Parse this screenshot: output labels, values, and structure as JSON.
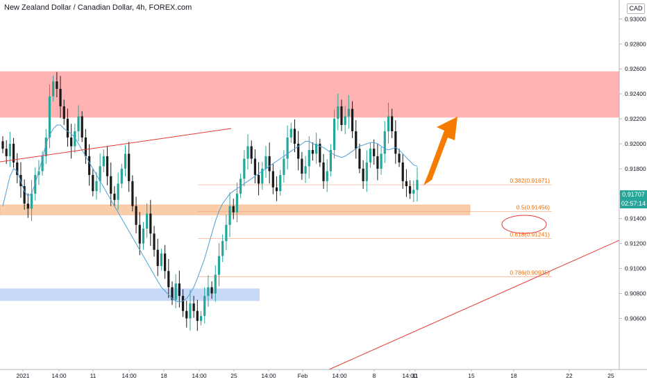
{
  "header": {
    "title": "New Zealand Dollar / Canadian Dollar, 4h, FOREX.com",
    "currency": "CAD"
  },
  "price_badges": {
    "last_price": "0.91707",
    "countdown": "02:57:14"
  },
  "colors": {
    "up_candle": "#26a69a",
    "down_candle": "#1a1a1a",
    "ma_line": "#4a9fd8",
    "resistance_zone": "#ffb3b3",
    "support_zone": "#f9ccaa",
    "demand_zone": "#c8d9f7",
    "trendline": "#e53935",
    "fib_line": "#f5a57a",
    "fib_text": "#ef6c00",
    "arrow": "#f57c00",
    "price_badge": "#26a69a"
  },
  "chart_data": {
    "type": "candlestick",
    "symbol": "NZDCAD",
    "timeframe": "4h",
    "y_axis": {
      "min": 0.9048,
      "max": 0.9318,
      "ticks": [
        "0.93000",
        "0.92800",
        "0.92600",
        "0.92400",
        "0.92200",
        "0.92000",
        "0.91800",
        "0.91600",
        "0.91400",
        "0.91200",
        "0.91000",
        "0.90800",
        "0.90600"
      ]
    },
    "x_axis_labels": [
      "2021",
      "14:00",
      "11",
      "14:00",
      "18",
      "14:00",
      "25",
      "14:00",
      "Feb",
      "14:00",
      "8",
      "14:00",
      "11",
      "15",
      "18",
      "22",
      "25"
    ],
    "close_series": [
      0.9196,
      0.919,
      0.92,
      0.9185,
      0.9175,
      0.9166,
      0.9152,
      0.9148,
      0.916,
      0.9175,
      0.9178,
      0.919,
      0.9205,
      0.9238,
      0.925,
      0.9244,
      0.923,
      0.922,
      0.9205,
      0.9198,
      0.921,
      0.9222,
      0.9205,
      0.919,
      0.9175,
      0.9162,
      0.917,
      0.9182,
      0.919,
      0.9174,
      0.916,
      0.9155,
      0.9168,
      0.918,
      0.9192,
      0.917,
      0.915,
      0.9135,
      0.912,
      0.9132,
      0.9144,
      0.9128,
      0.9115,
      0.9102,
      0.9112,
      0.9098,
      0.9085,
      0.9075,
      0.9088,
      0.9078,
      0.9066,
      0.906,
      0.9072,
      0.9066,
      0.9058,
      0.9062,
      0.9078,
      0.9085,
      0.908,
      0.9095,
      0.911,
      0.9122,
      0.9135,
      0.915,
      0.9145,
      0.916,
      0.9172,
      0.9188,
      0.9198,
      0.9188,
      0.9175,
      0.9168,
      0.918,
      0.919,
      0.9178,
      0.9165,
      0.9162,
      0.9175,
      0.9188,
      0.9205,
      0.9212,
      0.92,
      0.9188,
      0.9176,
      0.9182,
      0.9195,
      0.9192,
      0.92,
      0.9185,
      0.917,
      0.9178,
      0.9195,
      0.922,
      0.923,
      0.9215,
      0.9222,
      0.9228,
      0.921,
      0.9196,
      0.918,
      0.917,
      0.9185,
      0.9196,
      0.919,
      0.918,
      0.9192,
      0.921,
      0.9222,
      0.921,
      0.9192,
      0.9185,
      0.917,
      0.9166,
      0.916,
      0.9163,
      0.9171
    ],
    "moving_average": {
      "name": "",
      "values": [
        0.915,
        0.9162,
        0.9174,
        0.918,
        0.9178,
        0.917,
        0.9162,
        0.9158,
        0.916,
        0.9168,
        0.9178,
        0.9188,
        0.92,
        0.9207,
        0.9212,
        0.9215,
        0.9215,
        0.9212,
        0.921,
        0.9208,
        0.9205,
        0.92,
        0.9195,
        0.919,
        0.9185,
        0.918,
        0.9175,
        0.917,
        0.9165,
        0.916,
        0.9155,
        0.915,
        0.9145,
        0.914,
        0.9135,
        0.913,
        0.9125,
        0.912,
        0.9115,
        0.911,
        0.9105,
        0.91,
        0.9095,
        0.909,
        0.9085,
        0.9082,
        0.9079,
        0.9076,
        0.9074,
        0.9073,
        0.9074,
        0.9076,
        0.908,
        0.9085,
        0.9092,
        0.91,
        0.9108,
        0.9118,
        0.9128,
        0.9138,
        0.9146,
        0.9152,
        0.9156,
        0.916,
        0.9162,
        0.9164,
        0.9166,
        0.9168,
        0.917,
        0.9172,
        0.9174,
        0.9176,
        0.9178,
        0.918,
        0.9182,
        0.9184,
        0.9186,
        0.9188,
        0.919,
        0.9192,
        0.9194,
        0.9196,
        0.9198,
        0.92,
        0.9202,
        0.9202,
        0.92,
        0.9199,
        0.9198,
        0.9197,
        0.9195,
        0.9193,
        0.9191,
        0.919,
        0.9189,
        0.919,
        0.9192,
        0.9194,
        0.9196,
        0.9198,
        0.9199,
        0.92,
        0.9201,
        0.9201,
        0.92,
        0.9198,
        0.9196,
        0.9195,
        0.9196,
        0.9197,
        0.9195,
        0.9192,
        0.9189,
        0.9186,
        0.9183,
        0.9182
      ]
    },
    "zones": [
      {
        "name": "resistance",
        "from": 0.9221,
        "to": 0.9258
      },
      {
        "name": "support",
        "from": 0.9143,
        "to": 0.9151
      },
      {
        "name": "demand",
        "from": 0.9074,
        "to": 0.9084
      }
    ],
    "fibonacci_levels": [
      {
        "label": "0.382(0.91671)",
        "value": 0.91671
      },
      {
        "label": "0.5(0.91456)",
        "value": 0.91456
      },
      {
        "label": "0.618(0.91241)",
        "value": 0.91241
      },
      {
        "label": "0.786(0.90935)",
        "value": 0.90935
      }
    ]
  }
}
